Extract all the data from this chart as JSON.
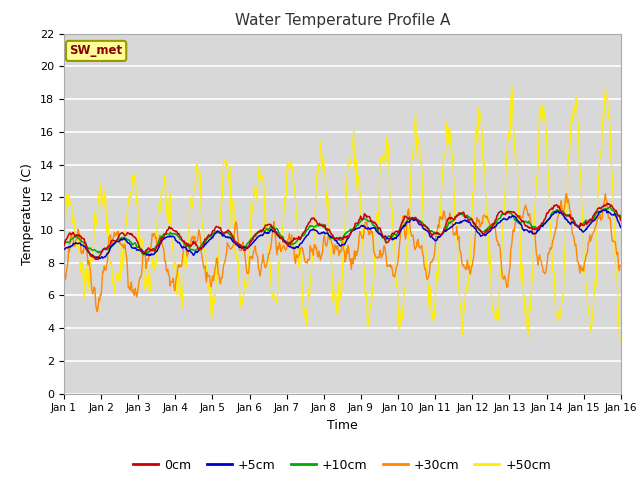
{
  "title": "Water Temperature Profile A",
  "xlabel": "Time",
  "ylabel": "Temperature (C)",
  "ylim": [
    0,
    22
  ],
  "yticks": [
    0,
    2,
    4,
    6,
    8,
    10,
    12,
    14,
    16,
    18,
    20,
    22
  ],
  "xlim": [
    0,
    15
  ],
  "xtick_labels": [
    "Jan 1",
    "Jan 2",
    "Jan 3",
    "Jan 4",
    "Jan 5",
    "Jan 6",
    "Jan 7",
    "Jan 8",
    "Jan 9",
    "Jan 10",
    "Jan 11",
    "Jan 12",
    "Jan 13",
    "Jan 14",
    "Jan 15",
    "Jan 16"
  ],
  "annotation_text": "SW_met",
  "annotation_bg": "#ffff99",
  "annotation_border": "#999900",
  "annotation_text_color": "#880000",
  "series_colors": [
    "#cc0000",
    "#0000cc",
    "#00aa00",
    "#ff8800",
    "#ffee00"
  ],
  "series_labels": [
    "0cm",
    "+5cm",
    "+10cm",
    "+30cm",
    "+50cm"
  ],
  "bg_color": "#d8d8d8",
  "grid_color": "#ffffff",
  "fig_bg": "#ffffff",
  "seed": 12345
}
